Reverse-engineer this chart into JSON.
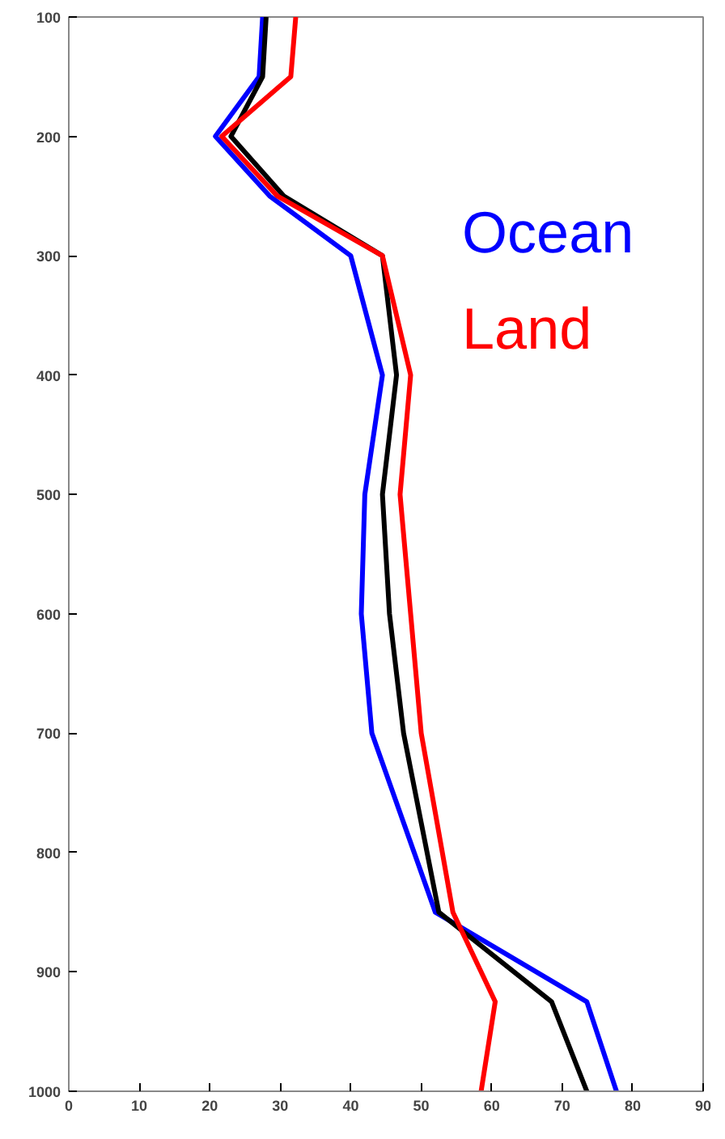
{
  "chart_data": {
    "type": "line",
    "series": [
      {
        "name": "Ocean",
        "color": "#0000ff",
        "x": [
          27.5,
          27,
          20.8,
          28.5,
          40,
          44.5,
          42,
          41.5,
          43,
          52,
          73.5,
          77.7
        ],
        "values": [
          100,
          150,
          200,
          250,
          300,
          400,
          500,
          600,
          700,
          850,
          925,
          1000
        ]
      },
      {
        "color": "#000000",
        "x": [
          28,
          27.5,
          23,
          30.5,
          44.5,
          46.5,
          44.5,
          45.5,
          47.5,
          52.5,
          68.5,
          73.5
        ],
        "values": [
          100,
          150,
          200,
          250,
          300,
          400,
          500,
          600,
          700,
          850,
          925,
          1000
        ]
      },
      {
        "name": "Land",
        "color": "#ff0000",
        "x": [
          32.2,
          31.5,
          21.7,
          29.6,
          44.5,
          48.5,
          47,
          48.5,
          50,
          54.5,
          60.5,
          58.5
        ],
        "values": [
          100,
          150,
          200,
          250,
          300,
          400,
          500,
          600,
          700,
          850,
          925,
          1000
        ]
      }
    ],
    "xlim": [
      0,
      90
    ],
    "xticks": [
      0,
      10,
      20,
      30,
      40,
      50,
      60,
      70,
      80,
      90
    ],
    "ylim": [
      1000,
      100
    ],
    "yticks": [
      100,
      200,
      300,
      400,
      500,
      600,
      700,
      800,
      900,
      1000
    ],
    "grid": false,
    "legend": "right",
    "marker": "none",
    "line_style": "solid"
  }
}
